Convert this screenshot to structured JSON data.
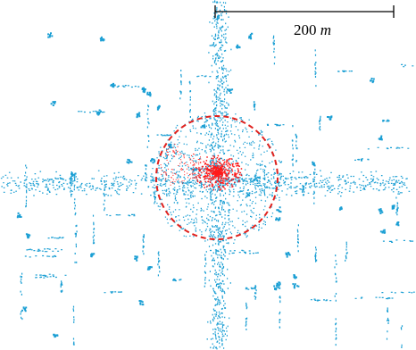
{
  "scale_bar": {
    "value": "200",
    "unit": "m"
  }
}
